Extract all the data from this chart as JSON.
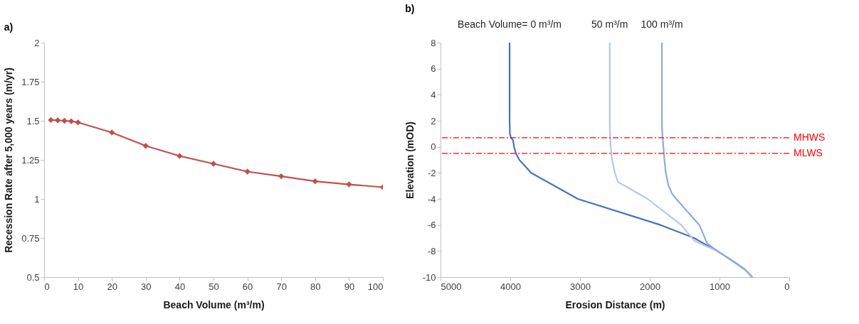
{
  "chart_data": [
    {
      "type": "line",
      "title": "a)",
      "xlabel": "Beach Volume (m³/m)",
      "ylabel": "Recession Rate after 5,000 years (m/yr)",
      "x": [
        2,
        4,
        6,
        8,
        10,
        20,
        30,
        40,
        50,
        60,
        70,
        80,
        90,
        100
      ],
      "series": [
        {
          "color": "#c0504d",
          "values": [
            1.505,
            1.503,
            1.5,
            1.497,
            1.49,
            1.425,
            1.34,
            1.275,
            1.225,
            1.175,
            1.145,
            1.113,
            1.093,
            1.075
          ]
        }
      ],
      "marker": "diamond",
      "xlim": [
        0,
        100
      ],
      "xticks": [
        0,
        10,
        20,
        30,
        40,
        50,
        60,
        70,
        80,
        90,
        100
      ],
      "ylim": [
        0.5,
        2
      ],
      "yticks": [
        0.5,
        0.75,
        1,
        1.25,
        1.5,
        1.75,
        2
      ],
      "grid": false
    },
    {
      "type": "line",
      "title": "b)",
      "xlabel": "Erosion Distance (m)",
      "ylabel": "Elevation (mOD)",
      "series": [
        {
          "name": "Beach Volume= 0 m³/m",
          "color": "#4472c4",
          "x": [
            4010,
            4010,
            4005,
            3990,
            3960,
            3945,
            3920,
            3870,
            3700,
            3030,
            1845,
            1363,
            1200,
            1030,
            800,
            640,
            530
          ],
          "values": [
            8,
            2,
            1,
            0.7,
            0.5,
            0,
            -0.5,
            -1,
            -2,
            -4,
            -6,
            -7,
            -7.5,
            -8,
            -8.8,
            -9.4,
            -10
          ]
        },
        {
          "name": "50 m³/m",
          "color": "#b4c7e7",
          "x": [
            2574,
            2574,
            2570,
            2560,
            2540,
            2500,
            2456,
            2030,
            1548,
            1363,
            1200,
            1030,
            800,
            640,
            530
          ],
          "values": [
            8,
            2,
            1,
            0,
            -1,
            -2,
            -2.7,
            -4,
            -6,
            -7.2,
            -7.6,
            -8,
            -8.8,
            -9.4,
            -10
          ]
        },
        {
          "name": "100 m³/m",
          "color": "#8faadc",
          "x": [
            1826,
            1826,
            1820,
            1815,
            1805,
            1790,
            1770,
            1730,
            1680,
            1620,
            1289,
            1178,
            1030,
            800,
            640,
            530
          ],
          "values": [
            8,
            2,
            1,
            0.7,
            0,
            -1,
            -2,
            -3,
            -3.6,
            -4,
            -6,
            -7.4,
            -8,
            -8.8,
            -9.4,
            -10
          ]
        }
      ],
      "ref_lines": [
        {
          "axis": "y",
          "value": 0.7,
          "label": "MHWS",
          "color": "#ff0000",
          "line_style": "dashed"
        },
        {
          "axis": "y",
          "value": -0.5,
          "label": "MLWS",
          "color": "#ff0000",
          "line_style": "dashed"
        }
      ],
      "xlim": [
        5000,
        0
      ],
      "xticks": [
        5000,
        4000,
        3000,
        2000,
        1000,
        0
      ],
      "ylim": [
        -10,
        8
      ],
      "yticks": [
        -10,
        -8,
        -6,
        -4,
        -2,
        0,
        2,
        4,
        6,
        8
      ],
      "grid": false
    }
  ]
}
